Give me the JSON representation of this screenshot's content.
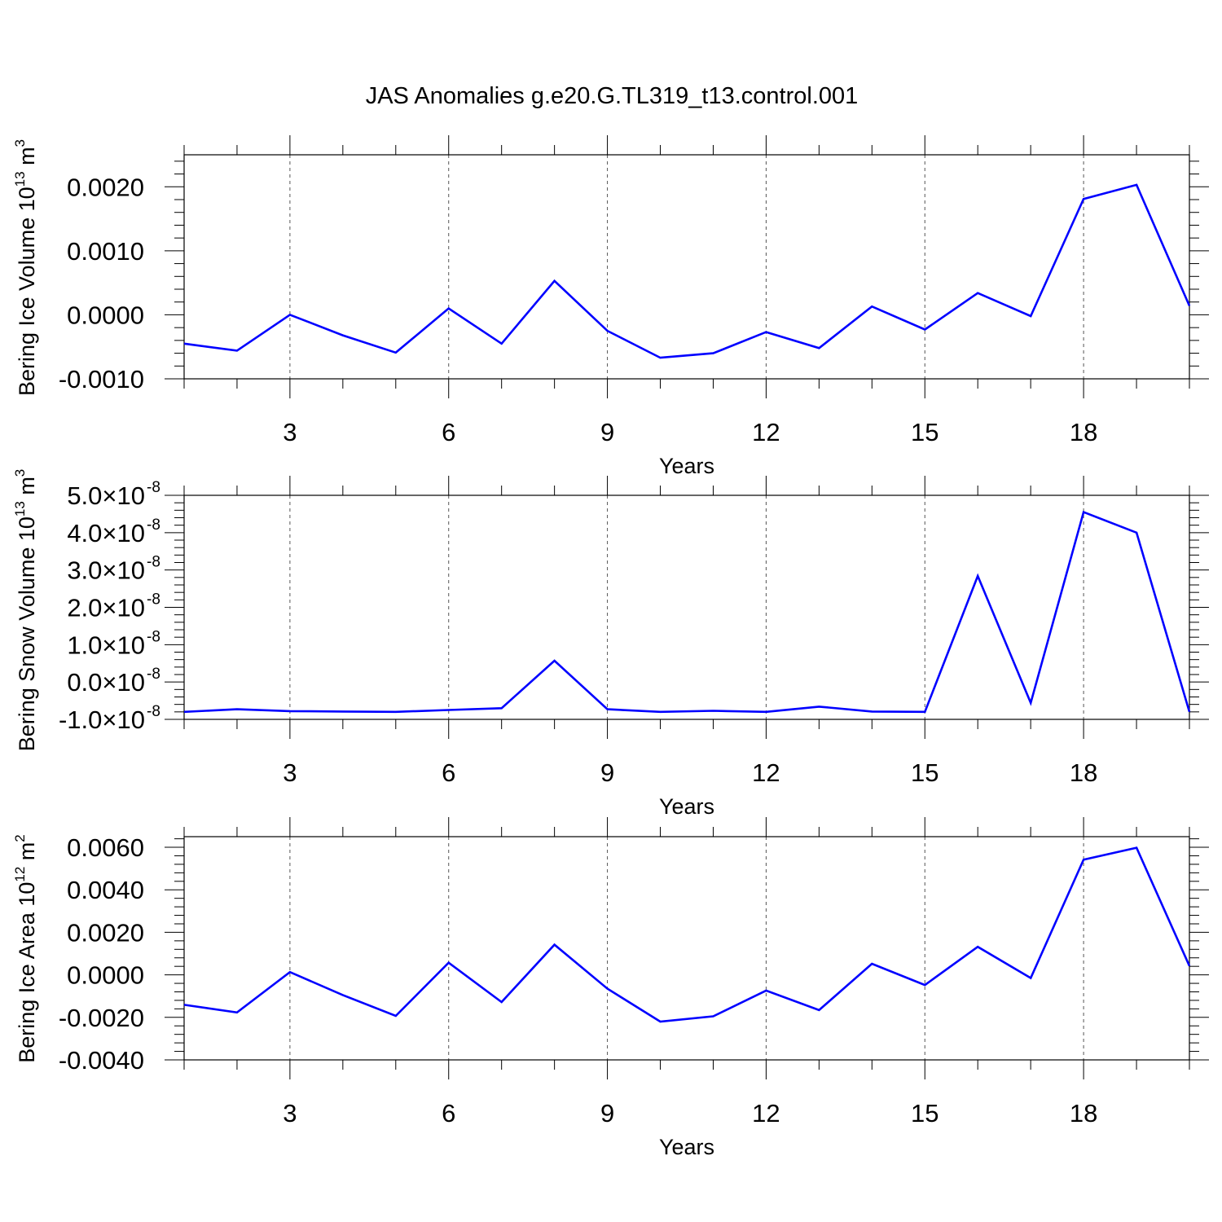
{
  "title": "JAS Anomalies g.e20.G.TL319_t13.control.001",
  "colors": {
    "line": "#0000ff",
    "axis": "#000000",
    "grid": "#555555"
  },
  "chart_data": [
    {
      "type": "line",
      "ylabel": "Bering Ice Volume 10",
      "ylabel_exp": "13",
      "ylabel_unit": "m",
      "ylabel_unit_exp": "3",
      "xlabel": "Years",
      "xlim": [
        1,
        20
      ],
      "ylim": [
        -0.001,
        0.0025
      ],
      "xticks": [
        3,
        6,
        9,
        12,
        15,
        18
      ],
      "xtick_labels": [
        "3",
        "6",
        "9",
        "12",
        "15",
        "18"
      ],
      "yticks": [
        -0.001,
        0.0,
        0.001,
        0.002
      ],
      "ytick_labels": [
        "-0.0010",
        "0.0000",
        "0.0010",
        "0.0020"
      ],
      "ytick_exp": "",
      "x": [
        1,
        2,
        3,
        4,
        5,
        6,
        7,
        8,
        9,
        10,
        11,
        12,
        13,
        14,
        15,
        16,
        17,
        18,
        19,
        20
      ],
      "series": [
        {
          "values": [
            -0.00045,
            -0.00056,
            0.0,
            -0.00032,
            -0.00059,
            0.0001,
            -0.00045,
            0.00053,
            -0.00025,
            -0.00067,
            -0.0006,
            -0.00027,
            -0.00052,
            0.00013,
            -0.00023,
            0.00034,
            -2e-05,
            0.00181,
            0.00203,
            0.00014
          ]
        }
      ],
      "grid": "vertical-dashed",
      "legend": "none"
    },
    {
      "type": "line",
      "ylabel": "Bering Snow Volume 10",
      "ylabel_exp": "13",
      "ylabel_unit": "m",
      "ylabel_unit_exp": "3",
      "xlabel": "Years",
      "xlim": [
        1,
        20
      ],
      "ylim": [
        -1e-08,
        5e-08
      ],
      "xticks": [
        3,
        6,
        9,
        12,
        15,
        18
      ],
      "xtick_labels": [
        "3",
        "6",
        "9",
        "12",
        "15",
        "18"
      ],
      "yticks": [
        -1e-08,
        0.0,
        1e-08,
        2e-08,
        3e-08,
        4e-08,
        5e-08
      ],
      "ytick_labels": [
        "-1.0×10",
        "0.0×10",
        "1.0×10",
        "2.0×10",
        "3.0×10",
        "4.0×10",
        "5.0×10"
      ],
      "ytick_exp": "-8",
      "x": [
        1,
        2,
        3,
        4,
        5,
        6,
        7,
        8,
        9,
        10,
        11,
        12,
        13,
        14,
        15,
        16,
        17,
        18,
        19,
        20
      ],
      "series": [
        {
          "values": [
            -8e-09,
            -7.3e-09,
            -7.8e-09,
            -7.9e-09,
            -8e-09,
            -7.5e-09,
            -7e-09,
            5.7e-09,
            -7.3e-09,
            -8e-09,
            -7.7e-09,
            -8e-09,
            -6.6e-09,
            -7.9e-09,
            -8e-09,
            2.84e-08,
            -5.6e-09,
            4.55e-08,
            4e-08,
            -8e-09
          ]
        }
      ],
      "grid": "vertical-dashed",
      "legend": "none"
    },
    {
      "type": "line",
      "ylabel": "Bering Ice Area 10",
      "ylabel_exp": "12",
      "ylabel_unit": "m",
      "ylabel_unit_exp": "2",
      "xlabel": "Years",
      "xlim": [
        1,
        20
      ],
      "ylim": [
        -0.004,
        0.0065
      ],
      "xticks": [
        3,
        6,
        9,
        12,
        15,
        18
      ],
      "xtick_labels": [
        "3",
        "6",
        "9",
        "12",
        "15",
        "18"
      ],
      "yticks": [
        -0.004,
        -0.002,
        0.0,
        0.002,
        0.004,
        0.006
      ],
      "ytick_labels": [
        "-0.0040",
        "-0.0020",
        "0.0000",
        "0.0020",
        "0.0040",
        "0.0060"
      ],
      "ytick_exp": "",
      "x": [
        1,
        2,
        3,
        4,
        5,
        6,
        7,
        8,
        9,
        10,
        11,
        12,
        13,
        14,
        15,
        16,
        17,
        18,
        19,
        20
      ],
      "series": [
        {
          "values": [
            -0.00141,
            -0.00177,
            0.00013,
            -0.00095,
            -0.00193,
            0.00057,
            -0.00128,
            0.00142,
            -0.00065,
            -0.0022,
            -0.00195,
            -0.00074,
            -0.00166,
            0.00052,
            -0.00048,
            0.00132,
            -0.00015,
            0.00542,
            0.00598,
            0.00042
          ]
        }
      ],
      "grid": "vertical-dashed",
      "legend": "none"
    }
  ]
}
